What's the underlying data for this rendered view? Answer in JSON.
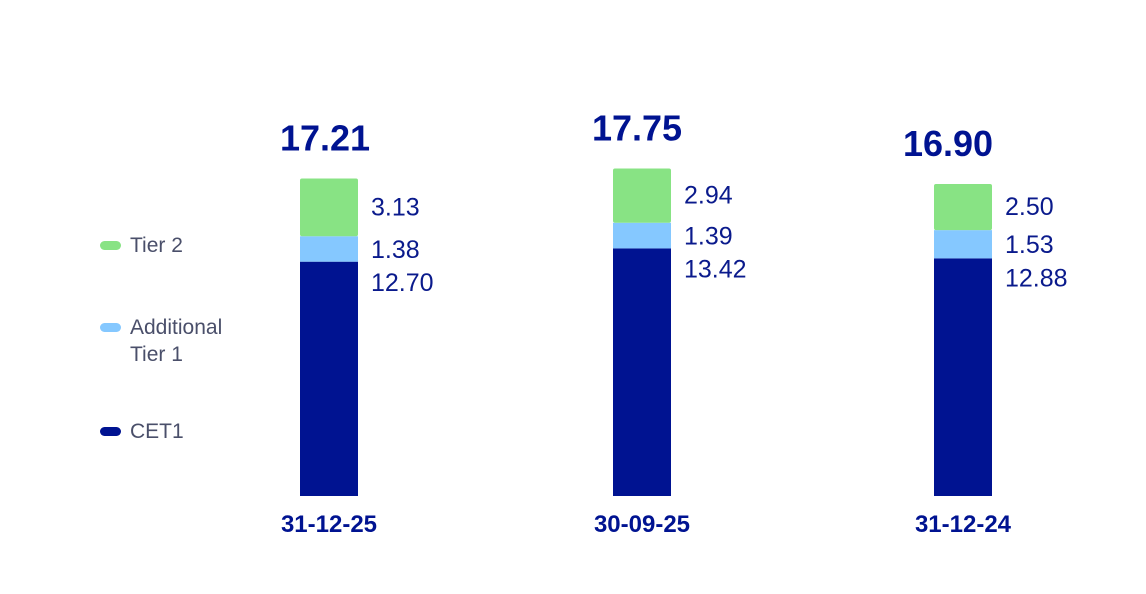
{
  "chart_data": {
    "type": "bar",
    "stacked": true,
    "categories": [
      "31-12-25",
      "30-09-25",
      "31-12-24"
    ],
    "series": [
      {
        "name": "CET1",
        "values": [
          12.7,
          13.42,
          12.88
        ],
        "color": "#001391",
        "labels": [
          "12.70",
          "13.42",
          "12.88"
        ]
      },
      {
        "name": "Additional Tier 1",
        "values": [
          1.38,
          1.39,
          1.53
        ],
        "color": "#85c8ff",
        "labels": [
          "1.38",
          "1.39",
          "1.53"
        ]
      },
      {
        "name": "Tier 2",
        "values": [
          3.13,
          2.94,
          2.5
        ],
        "color": "#88e384",
        "labels": [
          "3.13",
          "2.94",
          "2.50"
        ]
      }
    ],
    "totals": [
      "17.21",
      "17.75",
      "16.90"
    ],
    "grid": false,
    "legend_position": "left"
  },
  "legend": {
    "tier2": "Tier 2",
    "at1_line1": "Additional",
    "at1_line2": "Tier 1",
    "cet1": "CET1"
  }
}
